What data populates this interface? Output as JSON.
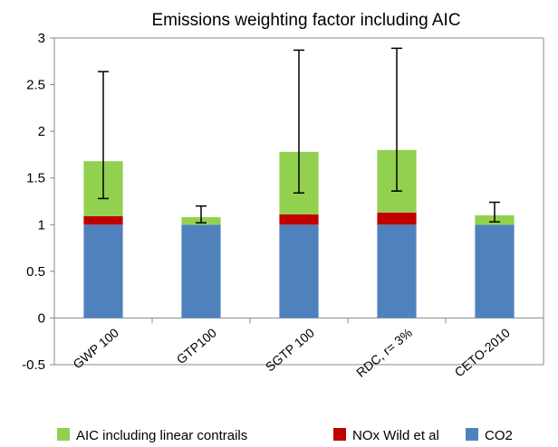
{
  "chart_data": {
    "type": "bar",
    "stacked": true,
    "title": "Emissions weighting factor including AIC",
    "xlabel": "",
    "ylabel": "",
    "ylim": [
      -0.5,
      3
    ],
    "yticks": [
      "-0.5",
      "0",
      "0.5",
      "1",
      "1.5",
      "2",
      "2.5",
      "3"
    ],
    "categories": [
      "GWP 100",
      "GTP100",
      "SGTP 100",
      "RDC, r= 3%",
      "CETO-2010"
    ],
    "series": [
      {
        "name": "CO2",
        "color": "#4f81bd",
        "values": [
          1.0,
          1.0,
          1.0,
          1.0,
          1.0
        ]
      },
      {
        "name": "NOx Wild et al",
        "color": "#c00000",
        "values": [
          0.09,
          0.0,
          0.11,
          0.13,
          0.0
        ]
      },
      {
        "name": "AIC including linear contrails",
        "color": "#92d050",
        "values": [
          0.59,
          0.08,
          0.67,
          0.67,
          0.1
        ]
      }
    ],
    "error_bars": [
      {
        "low": 1.28,
        "high": 2.64
      },
      {
        "low": 1.02,
        "high": 1.2
      },
      {
        "low": 1.34,
        "high": 2.87
      },
      {
        "low": 1.36,
        "high": 2.89
      },
      {
        "low": 1.03,
        "high": 1.24
      }
    ],
    "legend": {
      "position": "bottom",
      "order": [
        "AIC including linear contrails",
        "NOx Wild et al",
        "CO2"
      ]
    },
    "grid": false
  }
}
